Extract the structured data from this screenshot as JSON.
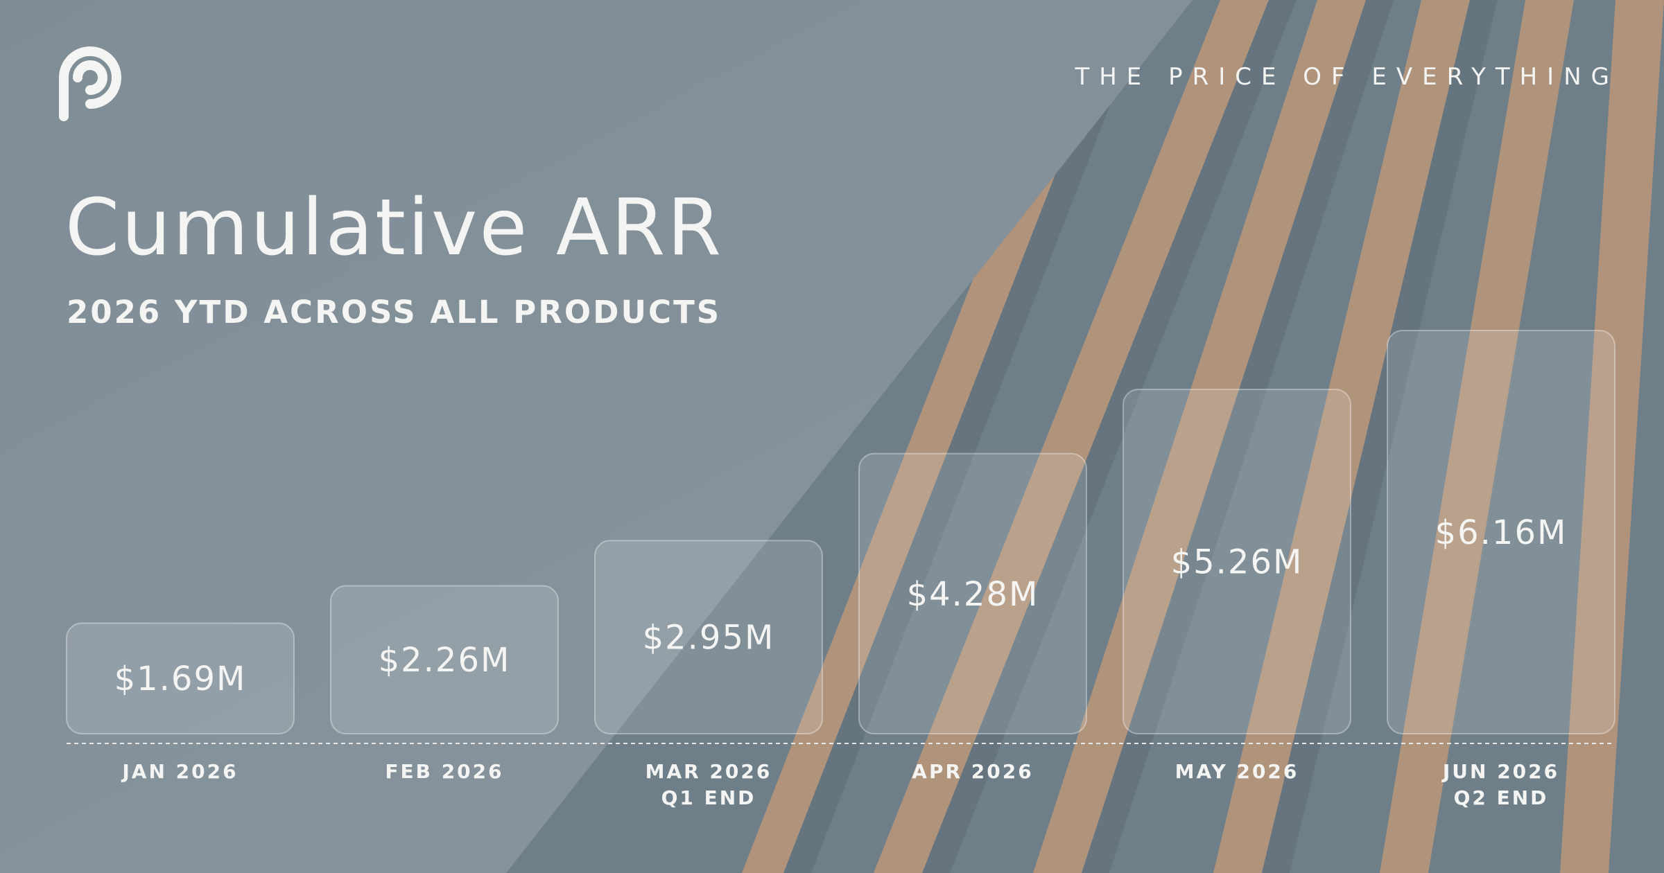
{
  "chart_data": {
    "type": "bar",
    "title": "Cumulative ARR",
    "subtitle": "2026 YTD ACROSS ALL PRODUCTS",
    "tagline": "THE PRICE OF EVERYTHING",
    "categories": [
      "JAN 2026",
      "FEB 2026",
      "MAR 2026",
      "APR 2026",
      "MAY 2026",
      "JUN 2026"
    ],
    "category_notes": [
      null,
      null,
      "Q1 END",
      null,
      null,
      "Q2 END"
    ],
    "values": [
      1.69,
      2.26,
      2.95,
      4.28,
      5.26,
      6.16
    ],
    "value_labels": [
      "$1.69M",
      "$2.26M",
      "$2.95M",
      "$4.28M",
      "$5.26M",
      "$6.16M"
    ],
    "color": "rgba(255,255,255,0.13)"
  }
}
